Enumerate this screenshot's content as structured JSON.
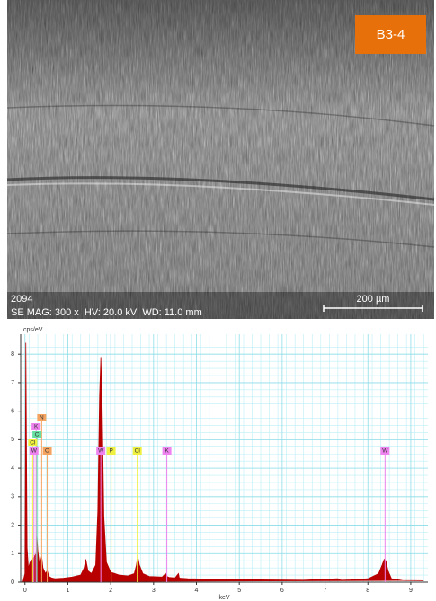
{
  "image": {
    "tag": "B3-4",
    "id": "2094",
    "info": "SE MAG: 300 x  HV: 20.0 kV  WD: 11.0 mm",
    "scale": "200 µm"
  },
  "chart_data": {
    "type": "area",
    "y_label": "cps/eV",
    "x_label": "keV",
    "xlim": [
      -0.1,
      9.4
    ],
    "ylim": [
      0,
      8.7
    ],
    "xticks": [
      0,
      1,
      2,
      3,
      4,
      5,
      6,
      7,
      8,
      9
    ],
    "yticks": [
      0,
      1,
      2,
      3,
      4,
      5,
      6,
      7,
      8
    ],
    "grid": true,
    "x": [
      -0.05,
      0.0,
      0.02,
      0.03,
      0.05,
      0.08,
      0.12,
      0.18,
      0.22,
      0.26,
      0.28,
      0.3,
      0.34,
      0.39,
      0.42,
      0.48,
      0.52,
      0.56,
      0.62,
      0.7,
      0.9,
      1.1,
      1.3,
      1.38,
      1.42,
      1.47,
      1.55,
      1.65,
      1.7,
      1.74,
      1.77,
      1.8,
      1.84,
      1.9,
      2.0,
      2.2,
      2.4,
      2.55,
      2.6,
      2.63,
      2.67,
      2.75,
      2.9,
      3.2,
      3.28,
      3.31,
      3.36,
      3.5,
      3.58,
      3.6,
      3.62,
      3.8,
      4.5,
      5.5,
      6.5,
      7.3,
      7.35,
      7.4,
      7.6,
      8.0,
      8.25,
      8.33,
      8.38,
      8.42,
      8.47,
      8.55,
      8.8,
      9.3
    ],
    "series": [
      {
        "color": "#b80000",
        "values": [
          0,
          0.3,
          8.4,
          6,
          1.2,
          0.5,
          0.7,
          0.8,
          0.9,
          1.0,
          1.6,
          1.1,
          0.6,
          0.9,
          0.5,
          0.3,
          0.4,
          0.2,
          0.15,
          0.12,
          0.14,
          0.18,
          0.25,
          0.5,
          0.8,
          0.4,
          0.3,
          0.6,
          2.5,
          6.5,
          7.9,
          6.2,
          2.3,
          0.7,
          0.35,
          0.25,
          0.22,
          0.3,
          0.6,
          0.9,
          0.6,
          0.3,
          0.2,
          0.18,
          0.3,
          0.2,
          0.17,
          0.15,
          0.3,
          0.15,
          0.14,
          0.12,
          0.1,
          0.08,
          0.07,
          0.12,
          0.08,
          0.07,
          0.08,
          0.12,
          0.3,
          0.6,
          0.8,
          0.75,
          0.4,
          0.12,
          0.06,
          0.05
        ]
      }
    ],
    "peaks": [
      {
        "label": "N",
        "x": 0.39,
        "color": "#f4a460"
      },
      {
        "label": "K",
        "x": 0.26,
        "color": "#ee82ee"
      },
      {
        "label": "C",
        "x": 0.28,
        "color": "#66e0a0"
      },
      {
        "label": "Cl",
        "x": 0.18,
        "color": "#f0f040"
      },
      {
        "label": "W",
        "x": 0.21,
        "color": "#ee82ee"
      },
      {
        "label": "O",
        "x": 0.52,
        "color": "#f4a460"
      },
      {
        "label": "W",
        "x": 1.77,
        "color": "#ee82ee"
      },
      {
        "label": "P",
        "x": 2.01,
        "color": "#f0f040"
      },
      {
        "label": "Cl",
        "x": 2.62,
        "color": "#f0f040"
      },
      {
        "label": "K",
        "x": 3.31,
        "color": "#ee82ee"
      },
      {
        "label": "W",
        "x": 8.4,
        "color": "#ee82ee"
      }
    ]
  }
}
